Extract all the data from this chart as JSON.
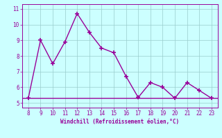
{
  "x": [
    8,
    9,
    10,
    11,
    12,
    13,
    14,
    15,
    16,
    17,
    18,
    19,
    20,
    21,
    22,
    23
  ],
  "y": [
    5.3,
    9.0,
    7.5,
    8.9,
    10.7,
    9.5,
    8.5,
    8.2,
    6.7,
    5.35,
    6.3,
    6.0,
    5.3,
    6.3,
    5.8,
    5.3
  ],
  "hline_y": 5.3,
  "xlim": [
    7.5,
    23.5
  ],
  "ylim": [
    4.7,
    11.3
  ],
  "yticks": [
    5,
    6,
    7,
    8,
    9,
    10,
    11
  ],
  "xticks": [
    8,
    9,
    10,
    11,
    12,
    13,
    14,
    15,
    16,
    17,
    18,
    19,
    20,
    21,
    22,
    23
  ],
  "xlabel": "Windchill (Refroidissement éolien,°C)",
  "line_color": "#990099",
  "hline_color": "#990099",
  "bg_color": "#ccffff",
  "grid_color": "#99cccc",
  "tick_label_color": "#990099",
  "xlabel_color": "#990099",
  "marker": "+",
  "marker_size": 4,
  "line_width": 1.0
}
